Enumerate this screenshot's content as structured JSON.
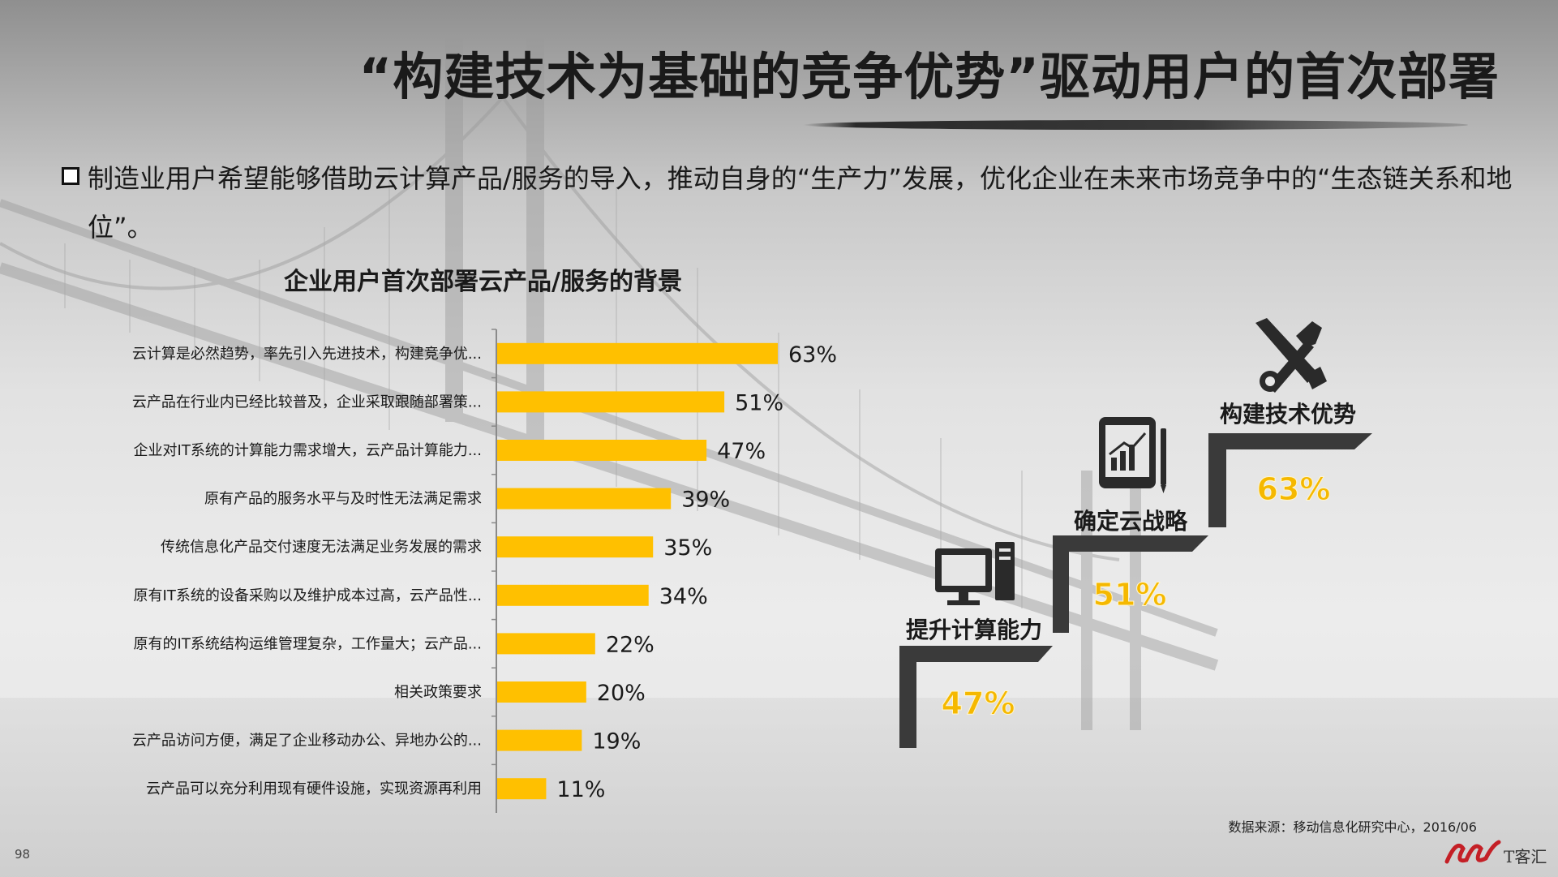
{
  "page": {
    "title": "“构建技术为基础的竞争优势”驱动用户的首次部署",
    "intro": "制造业用户希望能够借助云计算产品/服务的导入，推动自身的“生产力”发展，优化企业在未来市场竞争中的“生态链关系和地位”。",
    "source": "数据来源：移动信息化研究中心，2016/06",
    "page_number": "98",
    "logo_text": "T客汇"
  },
  "chart_data": {
    "type": "bar",
    "orientation": "horizontal",
    "title": "企业用户首次部署云产品/服务的背景",
    "categories": [
      "云计算是必然趋势，率先引入先进技术，构建竞争优...",
      "云产品在行业内已经比较普及，企业采取跟随部署策...",
      "企业对IT系统的计算能力需求增大，云产品计算能力...",
      "原有产品的服务水平与及时性无法满足需求",
      "传统信息化产品交付速度无法满足业务发展的需求",
      "原有IT系统的设备采购以及维护成本过高，云产品性...",
      "原有的IT系统结构运维管理复杂，工作量大；云产品...",
      "相关政策要求",
      "云产品访问方便，满足了企业移动办公、异地办公的...",
      "云产品可以充分利用现有硬件设施，实现资源再利用"
    ],
    "values": [
      63,
      51,
      47,
      39,
      35,
      34,
      22,
      20,
      19,
      11
    ],
    "value_labels": [
      "63%",
      "51%",
      "47%",
      "39%",
      "35%",
      "34%",
      "22%",
      "20%",
      "19%",
      "11%"
    ],
    "unit": "%",
    "xlim": [
      0,
      70
    ],
    "bar_color": "#ffc000",
    "grid": false,
    "legend": "none"
  },
  "stairs": {
    "steps": [
      {
        "label": "提升计算能力",
        "value": "47%",
        "icon": "computer-icon"
      },
      {
        "label": "确定云战略",
        "value": "51%",
        "icon": "tablet-chart-icon"
      },
      {
        "label": "构建技术优势",
        "value": "63%",
        "icon": "tools-icon"
      }
    ],
    "step_color": "#3a3a3a",
    "highlight_color": "#f5b800"
  }
}
